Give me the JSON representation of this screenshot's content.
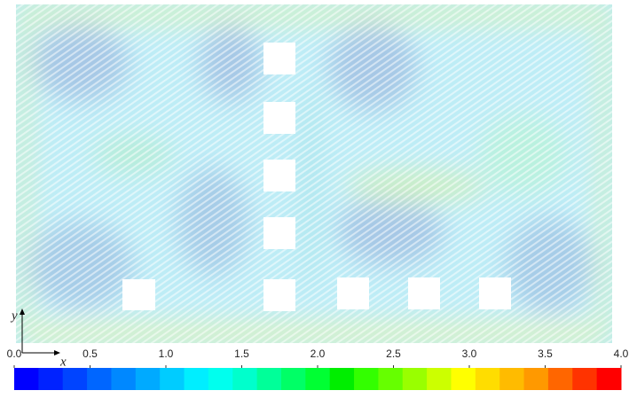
{
  "chart_data": {
    "type": "vector_field",
    "x_axis_label": "x",
    "y_axis_label": "y",
    "colorbar": {
      "xlim": [
        0,
        4
      ],
      "xticks": [
        {
          "value": 0,
          "label": "0.0"
        },
        0.5,
        {
          "value": 1,
          "label": "1.0"
        },
        1.5,
        {
          "value": 2,
          "label": "2.0"
        },
        2.5,
        {
          "value": 3,
          "label": "3.0"
        },
        3.5,
        {
          "value": 4,
          "label": "4.0"
        }
      ],
      "colormap": [
        "#0000ff",
        "#0022ff",
        "#0044ff",
        "#0066ff",
        "#0088ff",
        "#00aaff",
        "#00ccff",
        "#00eeff",
        "#00ffee",
        "#00ffcc",
        "#00ff99",
        "#00ff66",
        "#00ff33",
        "#00ee00",
        "#33ff00",
        "#66ff00",
        "#99ff00",
        "#ccff00",
        "#ffff00",
        "#ffdd00",
        "#ffbb00",
        "#ff9900",
        "#ff6600",
        "#ff3300",
        "#ff0000"
      ]
    }
  }
}
